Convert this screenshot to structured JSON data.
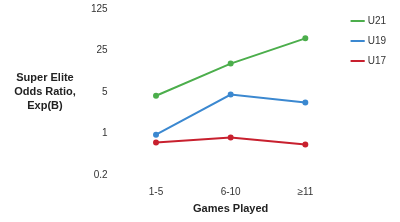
{
  "chart_data": {
    "type": "line",
    "x_label": "Games Played",
    "y_label": "Super Elite Odds Ratio, Exp(B)",
    "categories": [
      "1-5",
      "6-10",
      "≥11"
    ],
    "series": [
      {
        "name": "U21",
        "color": "#4cae4c",
        "values": [
          4.3,
          15,
          40
        ]
      },
      {
        "name": "U19",
        "color": "#3b88d0",
        "values": [
          0.95,
          4.5,
          3.3
        ]
      },
      {
        "name": "U17",
        "color": "#c8202e",
        "values": [
          0.7,
          0.85,
          0.65
        ]
      }
    ],
    "log": "y",
    "ylim": [
      0.2,
      125
    ],
    "yticks": [
      0.2,
      1,
      5,
      25,
      125
    ],
    "grid": false,
    "legend": "top-right",
    "marker": "circle"
  }
}
